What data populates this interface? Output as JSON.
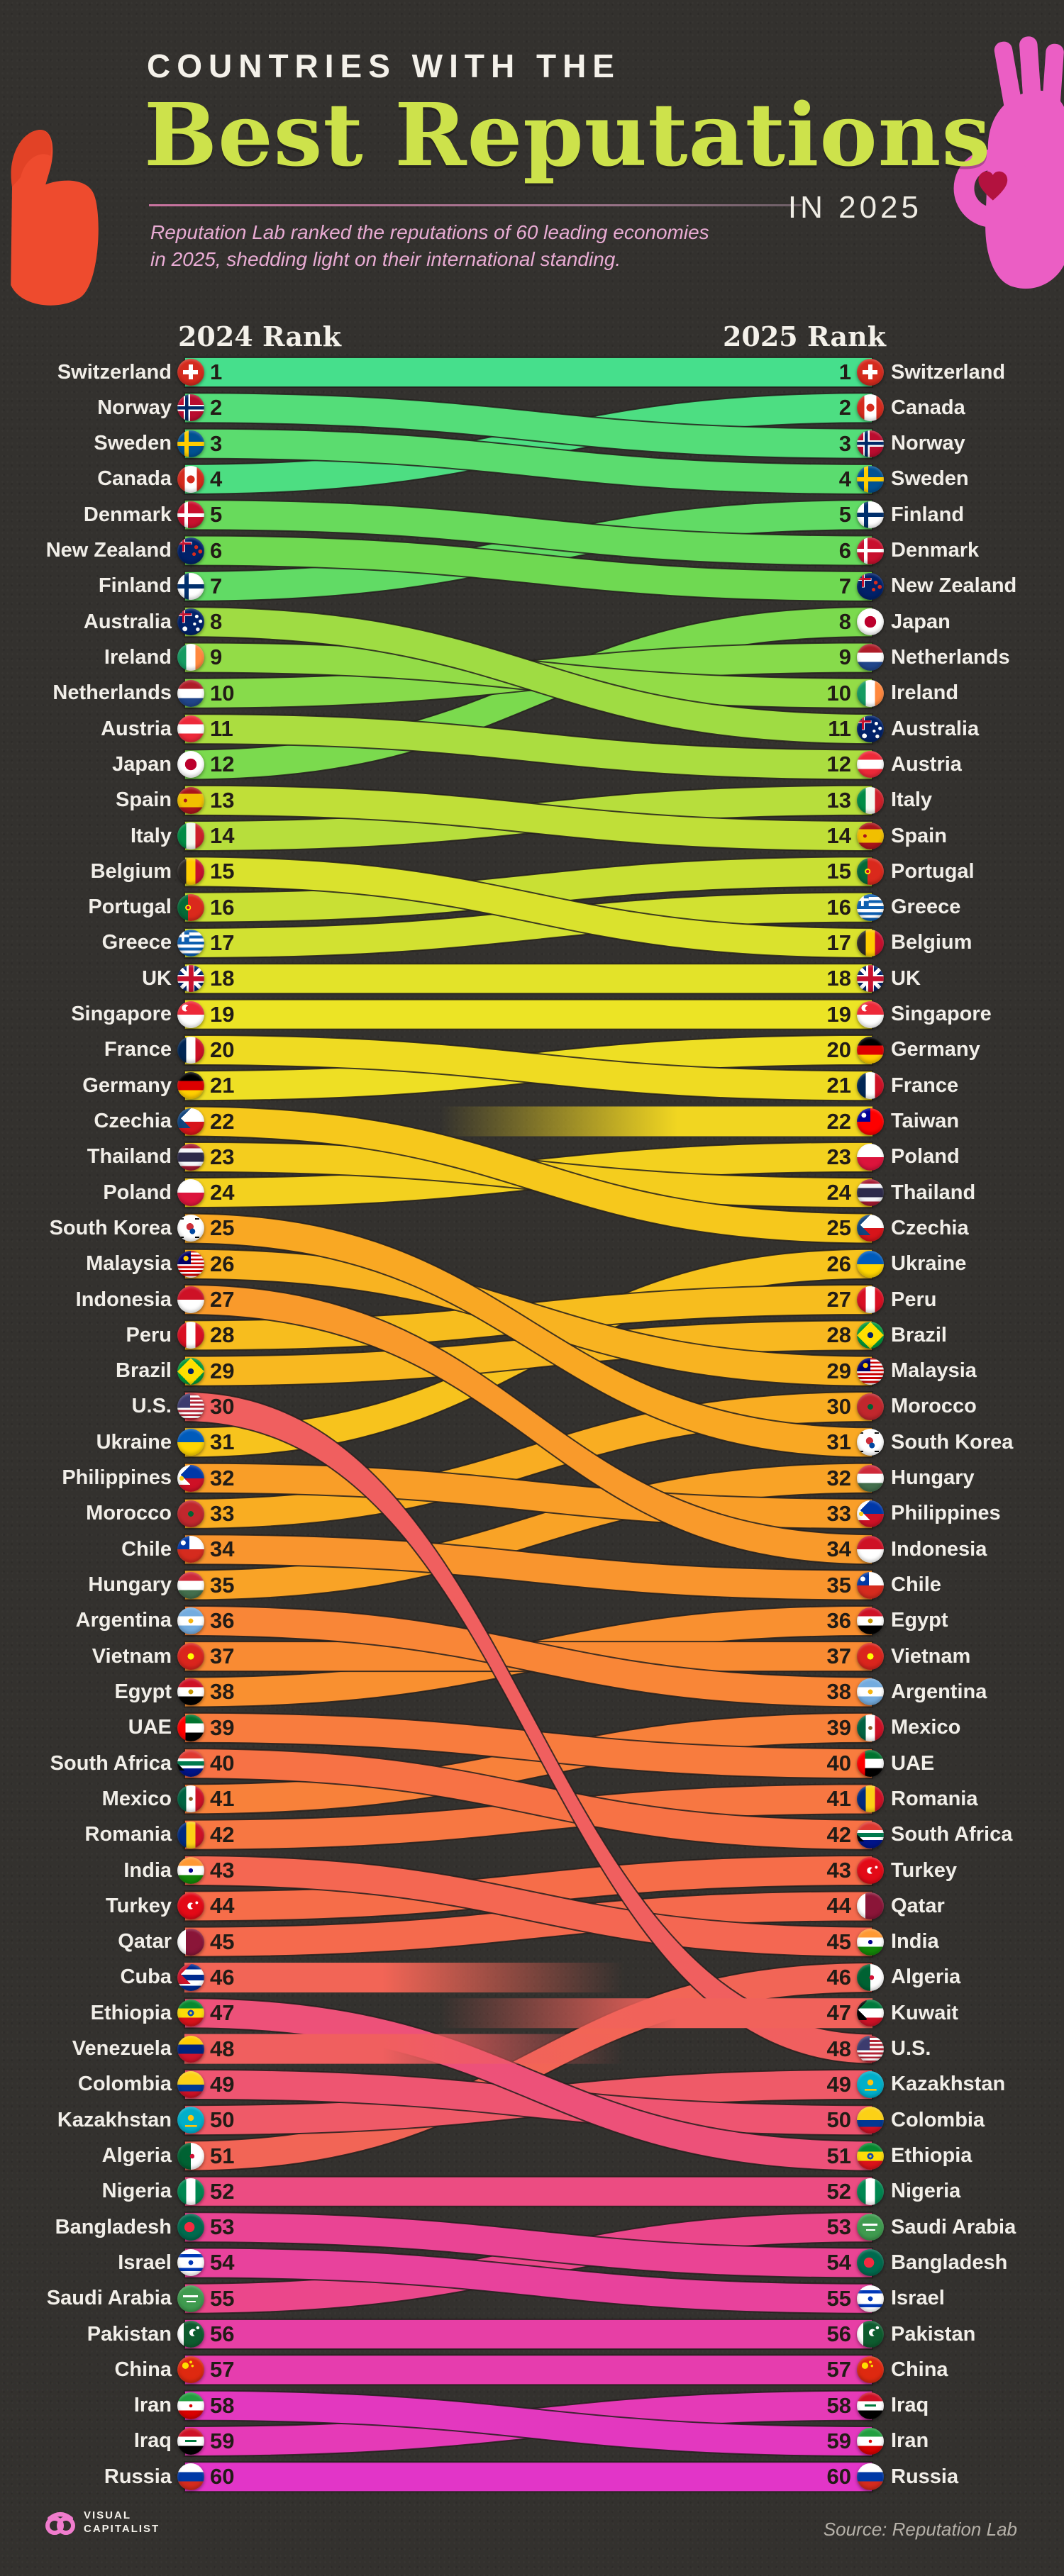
{
  "header": {
    "kicker": "COUNTRIES WITH THE",
    "title": "Best Reputations",
    "suffix": "IN 2025",
    "subtitle_line1": "Reputation Lab ranked the reputations of 60 leading economies",
    "subtitle_line2": "in 2025, shedding light on their international standing."
  },
  "footer": {
    "brand_line1": "VISUAL",
    "brand_line2": "CAPITALIST",
    "source": "Source: Reputation Lab"
  },
  "chart_data": {
    "type": "bump",
    "title": "Countries with the Best Reputations in 2025",
    "columns": [
      "2024 Rank",
      "2025 Rank"
    ],
    "source": "Source: Reputation Lab",
    "links": [
      {
        "c": "Switzerland",
        "from": 1,
        "to": 1
      },
      {
        "c": "Norway",
        "from": 2,
        "to": 3
      },
      {
        "c": "Sweden",
        "from": 3,
        "to": 4
      },
      {
        "c": "Canada",
        "from": 4,
        "to": 2
      },
      {
        "c": "Denmark",
        "from": 5,
        "to": 6
      },
      {
        "c": "New Zealand",
        "from": 6,
        "to": 7
      },
      {
        "c": "Finland",
        "from": 7,
        "to": 5
      },
      {
        "c": "Australia",
        "from": 8,
        "to": 11
      },
      {
        "c": "Ireland",
        "from": 9,
        "to": 10
      },
      {
        "c": "Netherlands",
        "from": 10,
        "to": 9
      },
      {
        "c": "Austria",
        "from": 11,
        "to": 12
      },
      {
        "c": "Japan",
        "from": 12,
        "to": 8
      },
      {
        "c": "Spain",
        "from": 13,
        "to": 14
      },
      {
        "c": "Italy",
        "from": 14,
        "to": 13
      },
      {
        "c": "Belgium",
        "from": 15,
        "to": 17
      },
      {
        "c": "Portugal",
        "from": 16,
        "to": 15
      },
      {
        "c": "Greece",
        "from": 17,
        "to": 16
      },
      {
        "c": "UK",
        "from": 18,
        "to": 18
      },
      {
        "c": "Singapore",
        "from": 19,
        "to": 19
      },
      {
        "c": "France",
        "from": 20,
        "to": 21
      },
      {
        "c": "Germany",
        "from": 21,
        "to": 20
      },
      {
        "c": "Czechia",
        "from": 22,
        "to": 25
      },
      {
        "c": "Thailand",
        "from": 23,
        "to": 24
      },
      {
        "c": "Poland",
        "from": 24,
        "to": 23
      },
      {
        "c": "South Korea",
        "from": 25,
        "to": 31
      },
      {
        "c": "Malaysia",
        "from": 26,
        "to": 29
      },
      {
        "c": "Indonesia",
        "from": 27,
        "to": 34
      },
      {
        "c": "Peru",
        "from": 28,
        "to": 27
      },
      {
        "c": "Brazil",
        "from": 29,
        "to": 28
      },
      {
        "c": "U.S.",
        "from": 30,
        "to": 48
      },
      {
        "c": "Ukraine",
        "from": 31,
        "to": 26
      },
      {
        "c": "Philippines",
        "from": 32,
        "to": 33
      },
      {
        "c": "Morocco",
        "from": 33,
        "to": 30
      },
      {
        "c": "Chile",
        "from": 34,
        "to": 35
      },
      {
        "c": "Hungary",
        "from": 35,
        "to": 32
      },
      {
        "c": "Argentina",
        "from": 36,
        "to": 38
      },
      {
        "c": "Vietnam",
        "from": 37,
        "to": 37
      },
      {
        "c": "Egypt",
        "from": 38,
        "to": 36
      },
      {
        "c": "UAE",
        "from": 39,
        "to": 40
      },
      {
        "c": "South Africa",
        "from": 40,
        "to": 42
      },
      {
        "c": "Mexico",
        "from": 41,
        "to": 39
      },
      {
        "c": "Romania",
        "from": 42,
        "to": 41
      },
      {
        "c": "India",
        "from": 43,
        "to": 45
      },
      {
        "c": "Turkey",
        "from": 44,
        "to": 43
      },
      {
        "c": "Qatar",
        "from": 45,
        "to": 44
      },
      {
        "c": "Cuba",
        "from": 46,
        "to": null,
        "status": "dropped"
      },
      {
        "c": "Ethiopia",
        "from": 47,
        "to": 51
      },
      {
        "c": "Venezuela",
        "from": 48,
        "to": null,
        "status": "dropped"
      },
      {
        "c": "Colombia",
        "from": 49,
        "to": 50
      },
      {
        "c": "Kazakhstan",
        "from": 50,
        "to": 49
      },
      {
        "c": "Algeria",
        "from": 51,
        "to": 46
      },
      {
        "c": "Nigeria",
        "from": 52,
        "to": 52
      },
      {
        "c": "Bangladesh",
        "from": 53,
        "to": 54
      },
      {
        "c": "Israel",
        "from": 54,
        "to": 55
      },
      {
        "c": "Saudi Arabia",
        "from": 55,
        "to": 53
      },
      {
        "c": "Pakistan",
        "from": 56,
        "to": 56
      },
      {
        "c": "China",
        "from": 57,
        "to": 57
      },
      {
        "c": "Iran",
        "from": 58,
        "to": 59
      },
      {
        "c": "Iraq",
        "from": 59,
        "to": 58
      },
      {
        "c": "Russia",
        "from": 60,
        "to": 60
      },
      {
        "c": "Taiwan",
        "from": null,
        "to": 22,
        "status": "new"
      },
      {
        "c": "Kuwait",
        "from": null,
        "to": 47,
        "status": "new"
      }
    ],
    "color_stops": [
      [
        1,
        "#46DF8C"
      ],
      [
        7,
        "#6FD952"
      ],
      [
        13,
        "#B7DE3C"
      ],
      [
        19,
        "#ECE425"
      ],
      [
        25,
        "#F6C81C"
      ],
      [
        31,
        "#F9A823"
      ],
      [
        37,
        "#F98B33"
      ],
      [
        43,
        "#F66D49"
      ],
      [
        48,
        "#F05F5F"
      ],
      [
        53,
        "#EB478B"
      ],
      [
        60,
        "#E235C8"
      ]
    ]
  },
  "colors": {
    "background": "#33312e",
    "title_green": "#cde24b",
    "subtitle_pink": "#e8abd3",
    "hand_left_orange": "#ee4b2e",
    "hand_right_pink": "#eb5ec4",
    "ribbon_outline": "#231f1c"
  },
  "flags": {
    "Switzerland": "linear-gradient(#fff,#fff) 50% 50%/56% 16% no-repeat,linear-gradient(#fff,#fff) 50% 50%/16% 56% no-repeat #d52b1e",
    "Norway": "linear-gradient(#002868,#002868) 32% 0/12% 100% no-repeat,linear-gradient(#002868,#002868) 0 50%/100% 12% no-repeat,linear-gradient(#fff,#fff) 31% 0/24% 100% no-repeat,linear-gradient(#fff,#fff) 0 50%/100% 24% no-repeat #ba0c2f",
    "Sweden": "linear-gradient(#ffcd00,#ffcd00) 32% 0/16% 100% no-repeat,linear-gradient(#ffcd00,#ffcd00) 0 50%/100% 16% no-repeat #005293",
    "Canada": "radial-gradient(circle at 50% 50%,#d52b1e 0 20%,#0000 21%),linear-gradient(to right,#d52b1e 0 28%,#fff 0 72%,#d52b1e 0)",
    "Denmark": "linear-gradient(#fff,#fff) 32% 0/14% 100% no-repeat,linear-gradient(#fff,#fff) 0 50%/100% 14% no-repeat #c8102e",
    "New Zealand": "radial-gradient(circle at 70% 36%,#d52b1e 0 7%,#0000 8%),radial-gradient(circle at 62% 62%,#d52b1e 0 7%,#0000 8%),radial-gradient(circle at 85% 52%,#d52b1e 0 7%,#0000 8%),linear-gradient(#c8102e,#c8102e) 0 21%/52% 8% no-repeat,linear-gradient(#c8102e,#c8102e) 21% 0/8% 52% no-repeat,linear-gradient(#fff,#fff) 0 20%/54% 11% no-repeat,linear-gradient(#fff,#fff) 20% 0/11% 54% no-repeat #012169",
    "Finland": "linear-gradient(#002f6c,#002f6c) 32% 0/16% 100% no-repeat,linear-gradient(#002f6c,#002f6c) 0 50%/100% 16% no-repeat #fff",
    "Australia": "radial-gradient(circle at 72% 30%,#fff 0 6%,#0000 7%),radial-gradient(circle at 64% 58%,#fff 0 6%,#0000 7%),radial-gradient(circle at 86% 48%,#fff 0 6%,#0000 7%),radial-gradient(circle at 76% 78%,#fff 0 6%,#0000 7%),radial-gradient(circle at 28% 76%,#fff 0 8%,#0000 9%),linear-gradient(#c8102e,#c8102e) 0 21%/52% 8% no-repeat,linear-gradient(#c8102e,#c8102e) 21% 0/8% 52% no-repeat,linear-gradient(#fff,#fff) 0 20%/54% 11% no-repeat,linear-gradient(#fff,#fff) 20% 0/11% 54% no-repeat #012169",
    "Ireland": "linear-gradient(to right,#169b62 0 33%,#fff 0 67%,#ff883e 0)",
    "Netherlands": "linear-gradient(#ae1c28 0 33%,#fff 0 67%,#21468b 0)",
    "Austria": "linear-gradient(#ed2939 0 33%,#fff 0 67%,#ed2939 0)",
    "Japan": "radial-gradient(circle at 50% 50%,#bc002d 0 30%,#0000 31%) #fff",
    "Spain": "radial-gradient(circle at 30% 50%,#aa151b 0 7%,#0000 8%),linear-gradient(#aa151b 0 25%,#f1bf00 0 75%,#aa151b 0)",
    "Italy": "linear-gradient(to right,#008c45 0 33%,#f4f9f0 0 67%,#cd212a 0)",
    "Belgium": "linear-gradient(to right,#2d2926 0 33%,#ffcd00 0 67%,#c8102e 0)",
    "Portugal": "radial-gradient(circle at 40% 50%,#c8102e 0 7%,#0000 8%),radial-gradient(circle at 40% 50%,#ffe900 0 13%,#0000 14%),linear-gradient(to right,#046a38 0 40%,#da291c 0)",
    "Greece": "linear-gradient(#fff,#fff) 0 20%/44% 10% no-repeat,linear-gradient(#fff,#fff) 17% 0/10% 46% no-repeat,linear-gradient(#0d5eaf,#0d5eaf) 0 0/44% 46% no-repeat,repeating-linear-gradient(#0d5eaf 0 11.1%,#fff 0 22.2%)",
    "UK": "linear-gradient(#c8102e,#c8102e) 50% 0/18% 100% no-repeat,linear-gradient(#c8102e,#c8102e) 0 50%/100% 18% no-repeat,linear-gradient(#fff,#fff) 50% 0/30% 100% no-repeat,linear-gradient(#fff,#fff) 0 50%/100% 30% no-repeat,linear-gradient(45deg,#0000 45%,#fff 0 55%,#0000 0),linear-gradient(135deg,#0000 45%,#fff 0 55%,#0000 0) #012169",
    "Singapore": "radial-gradient(circle at 40% 27%,#ed2939 0 9%,#0000 10%),radial-gradient(circle at 30% 25%,#fff 0 12%,#0000 13%),linear-gradient(#ed2939 0 50%,#fff 0)",
    "France": "linear-gradient(to right,#002654 0 33%,#fff 0 67%,#ce1126 0)",
    "Germany": "linear-gradient(#000 0 33%,#dd0000 0 67%,#ffce00 0)",
    "Czechia": "linear-gradient(135deg,#11457e 0 50%,#0000 0) 0 0/50% 50% no-repeat,linear-gradient(45deg,#11457e 0 50%,#0000 0) 0 50%/50% 50% no-repeat,linear-gradient(#fff 0 50%,#d7141a 0)",
    "Thailand": "linear-gradient(#a51931 0 17%,#f4f5f8 0 33%,#2d2a4a 0 67%,#f4f5f8 0 83%,#a51931 0)",
    "Poland": "linear-gradient(#fff 0 50%,#dc143c 0)",
    "South Korea": "radial-gradient(circle at 56% 62%,#0047a0 0 12%,#0000 13%),radial-gradient(circle at 47% 45%,#cd2e3a 0 17%,#0000 18%),linear-gradient(#000,#000) 8% 12%/16% 6% no-repeat,linear-gradient(#000,#000) 78% 12%/16% 6% no-repeat,linear-gradient(#000,#000) 8% 86%/16% 6% no-repeat,linear-gradient(#000,#000) 78% 86%/16% 6% no-repeat #fff",
    "Malaysia": "radial-gradient(circle at 32% 28%,#ffcc00 0 9%,#0000 10%),linear-gradient(#010066,#010066) 0 0/50% 50% no-repeat,repeating-linear-gradient(#cc0001 0 7.14%,#fff 0 14.28%)",
    "Indonesia": "linear-gradient(#ce1126 0 50%,#fff 0)",
    "Peru": "linear-gradient(to right,#d91023 0 33%,#fff 0 67%,#d91023 0)",
    "Brazil": "radial-gradient(circle at 50% 50%,#012169 0 15%,#0000 16%),linear-gradient(45deg,#009739 0 25%,#0000 0),linear-gradient(135deg,#009739 0 25%,#0000 0),linear-gradient(225deg,#009739 0 25%,#0000 0),linear-gradient(315deg,#009739 0 25%,#0000 0) #ffdf00",
    "U.S.": "linear-gradient(#3c3b6e,#3c3b6e) 0 0/48% 54% no-repeat,repeating-linear-gradient(#b22234 0 7.7%,#fff 0 15.4%)",
    "Ukraine": "linear-gradient(#005bbb 0 50%,#ffd500 0)",
    "Philippines": "radial-gradient(circle at 16% 50%,#fcd116 0 8%,#0000 9%),linear-gradient(135deg,#fff 0 50%,#0000 0) 0 0/48% 50% no-repeat,linear-gradient(45deg,#fff 0 50%,#0000 0) 0 50%/48% 50% no-repeat,linear-gradient(#0038a8 0 50%,#ce1126 0)",
    "Morocco": "radial-gradient(circle at 50% 50%,#006233 0 14%,#0000 15%) #c1272d",
    "Chile": "radial-gradient(circle at 22% 26%,#fff 0 8%,#0000 9%),linear-gradient(#0039a6,#0039a6) 0 0/45% 50% no-repeat,linear-gradient(#fff 0 50%,#d52b1e 0)",
    "Hungary": "linear-gradient(#ce2939 0 33%,#fff 0 67%,#436f4d 0)",
    "Argentina": "radial-gradient(circle at 50% 50%,#f6b40e 0 12%,#0000 13%),linear-gradient(#74acdf 0 33%,#fff 0 67%,#74acdf 0)",
    "Vietnam": "radial-gradient(circle at 50% 50%,#ffff00 0 16%,#0000 17%) #da251d",
    "Egypt": "radial-gradient(circle at 50% 50%,#c09300 0 12%,#0000 13%),linear-gradient(#ce1126 0 33%,#fff 0 67%,#000 0)",
    "UAE": "linear-gradient(to right,#ff0000 0 30%,#0000 0),linear-gradient(#00732f 0 33%,#fff 0 67%,#000 0)",
    "South Africa": "linear-gradient(135deg,#000 0 30%,#0000 0) 0 0/40% 50% no-repeat,linear-gradient(45deg,#000 0 30%,#0000 0) 0 50%/40% 50% no-repeat,linear-gradient(#de3831 0 32%,#fff 0 42%,#007a4d 0 58%,#fff 0 68%,#001489 0)",
    "Mexico": "radial-gradient(circle at 50% 50%,#8b5a2b 0 10%,#0000 11%),linear-gradient(to right,#006341 0 33%,#fff 0 67%,#ce1126 0)",
    "Romania": "linear-gradient(to right,#002b7f 0 33%,#fcd116 0 67%,#ce1126 0)",
    "India": "radial-gradient(circle at 50% 50%,#000088 0 11%,#0000 12%),linear-gradient(#ff9933 0 33%,#fff 0 67%,#138808 0)",
    "Turkey": "radial-gradient(circle at 72% 38%,#fff 0 5%,#0000 6%),radial-gradient(circle at 60% 50%,#e30a17 0 12%,#0000 13%),radial-gradient(circle at 50% 50%,#fff 0 17%,#0000 18%) #e30a17",
    "Qatar": "linear-gradient(to right,#fff 0 32%,#8a1538 0)",
    "Cuba": "linear-gradient(135deg,#cf142b 0 50%,#0000 0) 0 0/50% 50% no-repeat,linear-gradient(45deg,#cf142b 0 50%,#0000 0) 0 50%/50% 50% no-repeat,linear-gradient(#002a8f 0 20%,#fff 0 40%,#002a8f 0 60%,#fff 0 80%,#002a8f 0)",
    "Ethiopia": "radial-gradient(circle at 50% 50%,#fcdd09 0 6%,#0000 7%),radial-gradient(circle at 50% 50%,#0f47af 0 16%,#0000 17%),linear-gradient(#078930 0 33%,#fcdd09 0 67%,#da121a 0)",
    "Venezuela": "linear-gradient(#ffcc00 0 33%,#00247d 0 67%,#cf142b 0)",
    "Colombia": "linear-gradient(#fcd116 0 50%,#003893 0 75%,#ce1126 0)",
    "Kazakhstan": "radial-gradient(circle at 50% 42%,#fec50c 0 14%,#0000 15%),linear-gradient(#fec50c,#fec50c) 50% 72%/44% 7% no-repeat #00afca",
    "Algeria": "radial-gradient(circle at 55% 50%,#d21034 0 11%,#0000 12%),linear-gradient(to right,#006233 0 50%,#fff 0)",
    "Nigeria": "linear-gradient(to right,#008751 0 33%,#fff 0 67%,#008751 0)",
    "Bangladesh": "radial-gradient(circle at 45% 50%,#f42a41 0 25%,#0000 26%) #006a4e",
    "Israel": "radial-gradient(circle at 50% 50%,#0038b8 0 12%,#0000 13%),linear-gradient(#fff 0 18%,#0038b8 0 30%,#fff 0 70%,#0038b8 0 82%,#fff 0)",
    "Saudi Arabia": "linear-gradient(#fff,#fff) 50% 40%/56% 9% no-repeat,linear-gradient(#fff,#fff) 50% 62%/34% 6% no-repeat #3f9b4f",
    "Pakistan": "radial-gradient(circle at 76% 26%,#fff 0 5%,#0000 6%),radial-gradient(circle at 68% 46%,#0e5c2f 0 11%,#0000 12%),radial-gradient(circle at 58% 44%,#fff 0 16%,#0000 17%),linear-gradient(to right,#fff 0 24%,#0e5c2f 0)",
    "China": "radial-gradient(circle at 30% 35%,#ffde00 0 12%,#0000 13%),radial-gradient(circle at 50% 22%,#ffde00 0 5%,#0000 6%),radial-gradient(circle at 56% 36%,#ffde00 0 5%,#0000 6%) #de2910",
    "Iran": "radial-gradient(circle at 50% 50%,#da0000 0 8%,#0000 9%),linear-gradient(#239f40 0 33%,#fff 0 67%,#da0000 0)",
    "Iraq": "linear-gradient(#007a3d,#007a3d) 50% 50%/42% 9% no-repeat,linear-gradient(#ce1126 0 33%,#fff 0 67%,#000 0)",
    "Russia": "linear-gradient(#fff 0 33%,#0039a6 0 67%,#d52b1e 0)",
    "Taiwan": "radial-gradient(circle at 26% 26%,#fff 0 8%,#0000 9%),linear-gradient(#000095,#000095) 0 0/50% 50% no-repeat #fe0000",
    "Kuwait": "linear-gradient(135deg,#000 0 50%,#0000 0) 0 0/36% 50% no-repeat,linear-gradient(45deg,#000 0 50%,#0000 0) 0 50%/36% 50% no-repeat,linear-gradient(#007a3d 0 33%,#fff 0 67%,#ce1126 0)"
  }
}
